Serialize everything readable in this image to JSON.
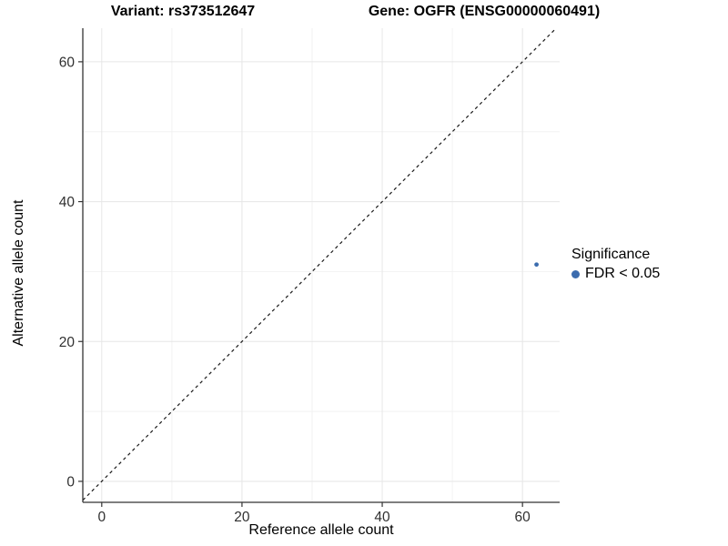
{
  "chart_data": {
    "type": "scatter",
    "title_left": "Variant: rs373512647",
    "title_right": "Gene: OGFR (ENSG00000060491)",
    "xlabel": "Reference allele count",
    "ylabel": "Alternative allele count",
    "xlim": [
      -2.7,
      65.3
    ],
    "ylim": [
      -3.0,
      64.8
    ],
    "xticks": [
      0,
      20,
      40,
      60
    ],
    "yticks": [
      0,
      20,
      40,
      60
    ],
    "xminor": [
      10,
      30,
      50
    ],
    "yminor": [
      10,
      30,
      50
    ],
    "grid": true,
    "legend_position": "right",
    "identity_line": {
      "style": "dashed",
      "equation": "y = x"
    },
    "points": [
      {
        "x": 62,
        "y": 31,
        "series": "FDR < 0.05"
      }
    ],
    "point_color": "#3B6CAE",
    "legend": {
      "title": "Significance",
      "items": [
        {
          "label": "FDR < 0.05",
          "color": "#3B6CAE"
        }
      ]
    },
    "colors": {
      "background": "#ffffff",
      "axis_line": "#333333",
      "tick_label": "#303030",
      "grid_major": "#e6e6e6",
      "grid_minor": "#f2f2f2",
      "identity_line": "#1a1a1a"
    }
  }
}
